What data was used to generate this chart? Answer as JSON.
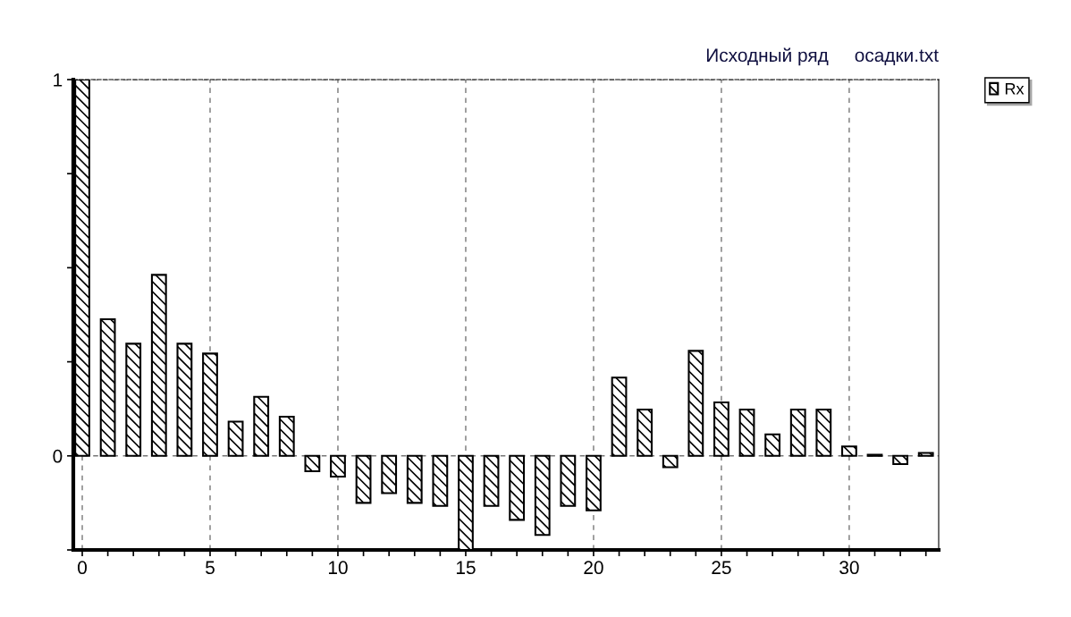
{
  "chart_data": {
    "type": "bar",
    "title": "Исходный ряд     осадки.txt",
    "x": [
      0,
      1,
      2,
      3,
      4,
      5,
      6,
      7,
      8,
      9,
      10,
      11,
      12,
      13,
      14,
      15,
      16,
      17,
      18,
      19,
      20,
      21,
      22,
      23,
      24,
      25,
      26,
      27,
      28,
      29,
      30,
      31,
      32,
      33
    ],
    "series": [
      {
        "name": "Rx",
        "color": "#000000",
        "values": [
          1,
          0.363,
          0.298,
          0.481,
          0.298,
          0.272,
          0.091,
          0.157,
          0.104,
          -0.041,
          -0.055,
          -0.125,
          -0.099,
          -0.125,
          -0.133,
          -0.25,
          -0.133,
          -0.17,
          -0.21,
          -0.133,
          -0.145,
          0.208,
          0.123,
          -0.03,
          0.279,
          0.142,
          0.123,
          0.057,
          0.123,
          0.123,
          0.025,
          0.003,
          -0.022,
          0.008
        ]
      }
    ],
    "xlim": [
      -0.35,
      33.5
    ],
    "xticks": [
      0,
      {
        "value": 1,
        "label": null
      },
      {
        "value": 2,
        "label": null
      },
      {
        "value": 3,
        "label": null
      },
      {
        "value": 4,
        "label": null
      },
      5,
      {
        "value": 6,
        "label": null
      },
      {
        "value": 7,
        "label": null
      },
      {
        "value": 8,
        "label": null
      },
      {
        "value": 9,
        "label": null
      },
      10,
      {
        "value": 11,
        "label": null
      },
      {
        "value": 12,
        "label": null
      },
      {
        "value": 13,
        "label": null
      },
      {
        "value": 14,
        "label": null
      },
      15,
      {
        "value": 16,
        "label": null
      },
      {
        "value": 17,
        "label": null
      },
      {
        "value": 18,
        "label": null
      },
      {
        "value": 19,
        "label": null
      },
      20,
      {
        "value": 21,
        "label": null
      },
      {
        "value": 22,
        "label": null
      },
      {
        "value": 23,
        "label": null
      },
      {
        "value": 24,
        "label": null
      },
      25,
      {
        "value": 26,
        "label": null
      },
      {
        "value": 27,
        "label": null
      },
      {
        "value": 28,
        "label": null
      },
      {
        "value": 29,
        "label": null
      },
      30,
      {
        "value": 31,
        "label": null
      },
      {
        "value": 32,
        "label": null
      },
      {
        "value": 33,
        "label": null
      }
    ],
    "ylim": [
      -0.25,
      1
    ],
    "yticks": [
      {
        "value": -0.25,
        "label": null
      },
      0,
      {
        "value": 0.25,
        "label": null
      },
      {
        "value": 0.5,
        "label": null
      },
      {
        "value": 0.75,
        "label": null
      },
      1
    ],
    "grid": true,
    "legend": "top right"
  }
}
